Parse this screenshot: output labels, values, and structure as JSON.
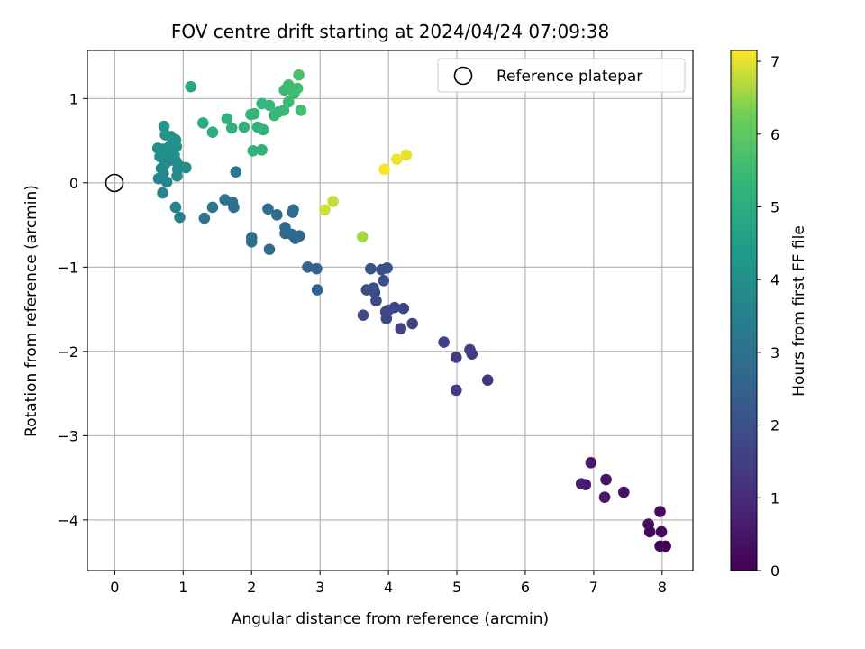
{
  "chart_data": {
    "type": "scatter",
    "title": "FOV centre drift starting at 2024/04/24 07:09:38",
    "xlabel": "Angular distance from reference (arcmin)",
    "ylabel": "Rotation from reference (arcmin)",
    "xlim": [
      -0.4,
      8.45
    ],
    "ylim": [
      -4.6,
      1.57
    ],
    "x_ticks": [
      0,
      1,
      2,
      3,
      4,
      5,
      6,
      7,
      8
    ],
    "y_ticks": [
      -4,
      -3,
      -2,
      -1,
      0,
      1
    ],
    "grid": true,
    "legend": {
      "position": "top-right",
      "entries": [
        "Reference platepar"
      ]
    },
    "reference_point": {
      "x": 0,
      "y": 0,
      "label": "Reference platepar"
    },
    "colorbar": {
      "label": "Hours from first FF file",
      "colormap": "viridis",
      "range": [
        0,
        7.15
      ],
      "ticks": [
        0,
        1,
        2,
        3,
        4,
        5,
        6,
        7
      ]
    },
    "points": [
      {
        "x": 8.05,
        "y": -4.31,
        "t": 0.05
      },
      {
        "x": 7.97,
        "y": -4.31,
        "t": 0.1
      },
      {
        "x": 7.99,
        "y": -4.14,
        "t": 0.15
      },
      {
        "x": 7.97,
        "y": -3.9,
        "t": 0.2
      },
      {
        "x": 7.82,
        "y": -4.14,
        "t": 0.25
      },
      {
        "x": 7.8,
        "y": -4.05,
        "t": 0.3
      },
      {
        "x": 7.44,
        "y": -3.67,
        "t": 0.4
      },
      {
        "x": 7.18,
        "y": -3.52,
        "t": 0.45
      },
      {
        "x": 7.16,
        "y": -3.73,
        "t": 0.5
      },
      {
        "x": 6.96,
        "y": -3.32,
        "t": 0.55
      },
      {
        "x": 6.88,
        "y": -3.58,
        "t": 0.6
      },
      {
        "x": 6.82,
        "y": -3.57,
        "t": 0.65
      },
      {
        "x": 5.45,
        "y": -2.34,
        "t": 1.3
      },
      {
        "x": 4.99,
        "y": -2.46,
        "t": 1.35
      },
      {
        "x": 4.99,
        "y": -2.07,
        "t": 1.4
      },
      {
        "x": 5.22,
        "y": -2.03,
        "t": 1.45
      },
      {
        "x": 5.19,
        "y": -1.98,
        "t": 1.5
      },
      {
        "x": 4.81,
        "y": -1.89,
        "t": 1.55
      },
      {
        "x": 4.35,
        "y": -1.67,
        "t": 1.6
      },
      {
        "x": 4.18,
        "y": -1.73,
        "t": 1.65
      },
      {
        "x": 4.22,
        "y": -1.49,
        "t": 1.7
      },
      {
        "x": 4.09,
        "y": -1.48,
        "t": 1.72
      },
      {
        "x": 3.97,
        "y": -1.61,
        "t": 1.75
      },
      {
        "x": 3.96,
        "y": -1.53,
        "t": 1.78
      },
      {
        "x": 4.0,
        "y": -1.51,
        "t": 1.8
      },
      {
        "x": 3.63,
        "y": -1.57,
        "t": 1.82
      },
      {
        "x": 3.82,
        "y": -1.4,
        "t": 1.85
      },
      {
        "x": 3.8,
        "y": -1.3,
        "t": 1.88
      },
      {
        "x": 3.68,
        "y": -1.27,
        "t": 1.9
      },
      {
        "x": 3.78,
        "y": -1.25,
        "t": 1.92
      },
      {
        "x": 3.93,
        "y": -1.16,
        "t": 1.95
      },
      {
        "x": 3.98,
        "y": -1.01,
        "t": 1.98
      },
      {
        "x": 3.9,
        "y": -1.03,
        "t": 2.0
      },
      {
        "x": 3.74,
        "y": -1.02,
        "t": 2.05
      },
      {
        "x": 2.96,
        "y": -1.27,
        "t": 2.5
      },
      {
        "x": 2.95,
        "y": -1.02,
        "t": 2.55
      },
      {
        "x": 2.82,
        "y": -1.0,
        "t": 2.6
      },
      {
        "x": 2.7,
        "y": -0.63,
        "t": 2.65
      },
      {
        "x": 2.64,
        "y": -0.66,
        "t": 2.7
      },
      {
        "x": 2.58,
        "y": -0.61,
        "t": 2.72
      },
      {
        "x": 2.49,
        "y": -0.6,
        "t": 2.75
      },
      {
        "x": 2.49,
        "y": -0.53,
        "t": 2.78
      },
      {
        "x": 2.6,
        "y": -0.35,
        "t": 2.8
      },
      {
        "x": 2.61,
        "y": -0.32,
        "t": 2.82
      },
      {
        "x": 2.37,
        "y": -0.38,
        "t": 2.85
      },
      {
        "x": 2.26,
        "y": -0.79,
        "t": 2.88
      },
      {
        "x": 2.24,
        "y": -0.31,
        "t": 2.9
      },
      {
        "x": 2.0,
        "y": -0.7,
        "t": 2.92
      },
      {
        "x": 2.0,
        "y": -0.65,
        "t": 2.95
      },
      {
        "x": 1.74,
        "y": -0.29,
        "t": 2.98
      },
      {
        "x": 1.72,
        "y": -0.23,
        "t": 3.0
      },
      {
        "x": 1.61,
        "y": -0.2,
        "t": 3.02
      },
      {
        "x": 1.43,
        "y": -0.29,
        "t": 3.05
      },
      {
        "x": 1.31,
        "y": -0.42,
        "t": 3.08
      },
      {
        "x": 1.77,
        "y": 0.13,
        "t": 3.2
      },
      {
        "x": 0.95,
        "y": -0.41,
        "t": 3.6
      },
      {
        "x": 0.89,
        "y": -0.29,
        "t": 3.62
      },
      {
        "x": 0.7,
        "y": -0.12,
        "t": 3.65
      },
      {
        "x": 0.76,
        "y": 0.01,
        "t": 3.68
      },
      {
        "x": 0.64,
        "y": 0.05,
        "t": 3.7
      },
      {
        "x": 0.71,
        "y": 0.11,
        "t": 3.72
      },
      {
        "x": 0.68,
        "y": 0.17,
        "t": 3.74
      },
      {
        "x": 0.73,
        "y": 0.22,
        "t": 3.76
      },
      {
        "x": 0.78,
        "y": 0.26,
        "t": 3.78
      },
      {
        "x": 0.82,
        "y": 0.32,
        "t": 3.8
      },
      {
        "x": 0.87,
        "y": 0.33,
        "t": 3.82
      },
      {
        "x": 0.9,
        "y": 0.25,
        "t": 3.84
      },
      {
        "x": 0.92,
        "y": 0.16,
        "t": 3.86
      },
      {
        "x": 0.91,
        "y": 0.08,
        "t": 3.88
      },
      {
        "x": 0.97,
        "y": 0.19,
        "t": 3.9
      },
      {
        "x": 1.04,
        "y": 0.18,
        "t": 3.92
      },
      {
        "x": 0.84,
        "y": 0.36,
        "t": 3.94
      },
      {
        "x": 0.76,
        "y": 0.38,
        "t": 3.96
      },
      {
        "x": 0.71,
        "y": 0.4,
        "t": 3.98
      },
      {
        "x": 0.63,
        "y": 0.41,
        "t": 4.0
      },
      {
        "x": 0.66,
        "y": 0.31,
        "t": 4.02
      },
      {
        "x": 0.81,
        "y": 0.44,
        "t": 4.04
      },
      {
        "x": 0.9,
        "y": 0.43,
        "t": 4.06
      },
      {
        "x": 0.89,
        "y": 0.51,
        "t": 4.08
      },
      {
        "x": 0.82,
        "y": 0.55,
        "t": 4.1
      },
      {
        "x": 0.74,
        "y": 0.57,
        "t": 4.12
      },
      {
        "x": 0.72,
        "y": 0.67,
        "t": 4.15
      },
      {
        "x": 1.11,
        "y": 1.14,
        "t": 4.8
      },
      {
        "x": 1.29,
        "y": 0.71,
        "t": 5.0
      },
      {
        "x": 1.43,
        "y": 0.6,
        "t": 5.05
      },
      {
        "x": 1.64,
        "y": 0.76,
        "t": 5.1
      },
      {
        "x": 1.71,
        "y": 0.65,
        "t": 5.12
      },
      {
        "x": 1.89,
        "y": 0.66,
        "t": 5.15
      },
      {
        "x": 2.02,
        "y": 0.38,
        "t": 5.18
      },
      {
        "x": 2.15,
        "y": 0.39,
        "t": 5.2
      },
      {
        "x": 2.09,
        "y": 0.66,
        "t": 5.22
      },
      {
        "x": 2.17,
        "y": 0.63,
        "t": 5.25
      },
      {
        "x": 1.99,
        "y": 0.81,
        "t": 5.28
      },
      {
        "x": 2.04,
        "y": 0.82,
        "t": 5.3
      },
      {
        "x": 2.15,
        "y": 0.94,
        "t": 5.32
      },
      {
        "x": 2.26,
        "y": 0.92,
        "t": 5.35
      },
      {
        "x": 2.33,
        "y": 0.8,
        "t": 5.38
      },
      {
        "x": 2.39,
        "y": 0.84,
        "t": 5.4
      },
      {
        "x": 2.47,
        "y": 0.86,
        "t": 5.42
      },
      {
        "x": 2.54,
        "y": 0.96,
        "t": 5.45
      },
      {
        "x": 2.48,
        "y": 1.1,
        "t": 5.48
      },
      {
        "x": 2.54,
        "y": 1.16,
        "t": 5.5
      },
      {
        "x": 2.62,
        "y": 1.06,
        "t": 5.52
      },
      {
        "x": 2.67,
        "y": 1.12,
        "t": 5.55
      },
      {
        "x": 2.72,
        "y": 0.86,
        "t": 5.6
      },
      {
        "x": 2.69,
        "y": 1.28,
        "t": 5.7
      },
      {
        "x": 3.62,
        "y": -0.64,
        "t": 6.6
      },
      {
        "x": 3.19,
        "y": -0.22,
        "t": 6.8
      },
      {
        "x": 3.07,
        "y": -0.32,
        "t": 6.85
      },
      {
        "x": 4.26,
        "y": 0.33,
        "t": 7.0
      },
      {
        "x": 4.12,
        "y": 0.28,
        "t": 7.05
      },
      {
        "x": 3.94,
        "y": 0.16,
        "t": 7.12
      }
    ]
  }
}
